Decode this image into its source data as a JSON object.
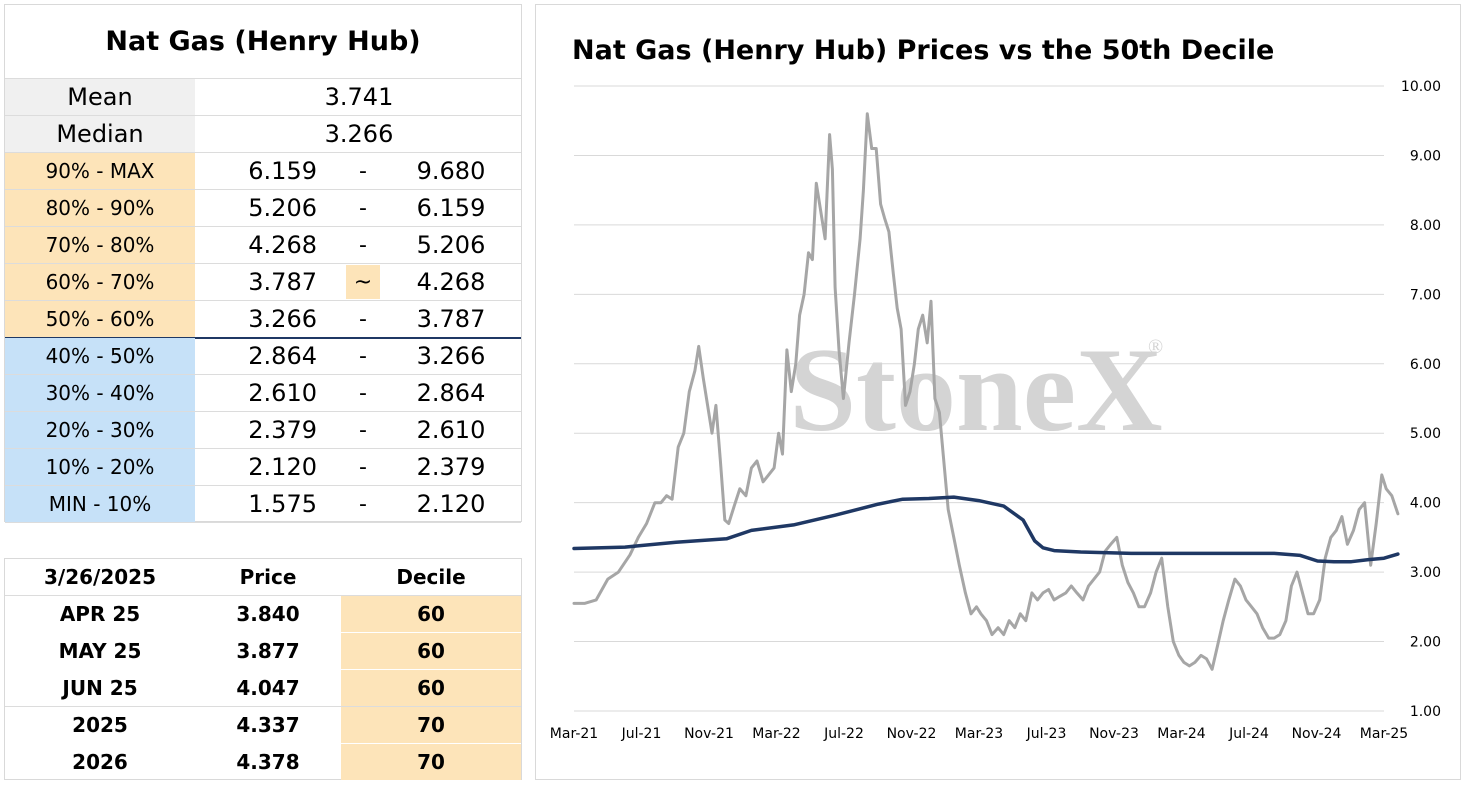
{
  "stats_table": {
    "title": "Nat Gas (Henry Hub)",
    "mean_label": "Mean",
    "mean_value": "3.741",
    "median_label": "Median",
    "median_value": "3.266",
    "deciles": [
      {
        "label": "90% - MAX",
        "low": "6.159",
        "sep": "-",
        "high": "9.680",
        "group": "upper"
      },
      {
        "label": "80% - 90%",
        "low": "5.206",
        "sep": "-",
        "high": "6.159",
        "group": "upper"
      },
      {
        "label": "70% - 80%",
        "low": "4.268",
        "sep": "-",
        "high": "5.206",
        "group": "upper"
      },
      {
        "label": "60% - 70%",
        "low": "3.787",
        "sep": "~",
        "high": "4.268",
        "group": "upper",
        "current": true
      },
      {
        "label": "50% - 60%",
        "low": "3.266",
        "sep": "-",
        "high": "3.787",
        "group": "upper"
      },
      {
        "label": "40% - 50%",
        "low": "2.864",
        "sep": "-",
        "high": "3.266",
        "group": "lower"
      },
      {
        "label": "30% - 40%",
        "low": "2.610",
        "sep": "-",
        "high": "2.864",
        "group": "lower"
      },
      {
        "label": "20% - 30%",
        "low": "2.379",
        "sep": "-",
        "high": "2.610",
        "group": "lower"
      },
      {
        "label": "10% - 20%",
        "low": "2.120",
        "sep": "-",
        "high": "2.379",
        "group": "lower"
      },
      {
        "label": "MIN - 10%",
        "low": "1.575",
        "sep": "-",
        "high": "2.120",
        "group": "lower"
      }
    ]
  },
  "futures_table": {
    "headers": [
      "3/26/2025",
      "Price",
      "Decile"
    ],
    "rows": [
      {
        "contract": "APR 25",
        "price": "3.840",
        "decile": "60"
      },
      {
        "contract": "MAY 25",
        "price": "3.877",
        "decile": "60"
      },
      {
        "contract": "JUN 25",
        "price": "4.047",
        "decile": "60"
      },
      {
        "contract": "2025",
        "price": "4.337",
        "decile": "70"
      },
      {
        "contract": "2026",
        "price": "4.378",
        "decile": "70"
      }
    ]
  },
  "colors": {
    "upper_decile": "#fde4b9",
    "lower_decile": "#c6e1f8",
    "header_grey": "#f0f0f0",
    "price_line": "#a6a6a6",
    "median_line": "#1f3864",
    "watermark": "#d4d4d4"
  },
  "watermark": "StoneX",
  "chart_data": {
    "type": "line",
    "title": "Nat Gas (Henry Hub) Prices vs the 50th Decile",
    "xlabel": "",
    "ylabel": "",
    "x_tick_labels": [
      "Mar-21",
      "Jul-21",
      "Nov-21",
      "Mar-22",
      "Jul-22",
      "Nov-22",
      "Mar-23",
      "Jul-23",
      "Nov-23",
      "Mar-24",
      "Jul-24",
      "Nov-24",
      "Mar-25"
    ],
    "y_tick_labels": [
      "1.00",
      "2.00",
      "3.00",
      "4.00",
      "5.00",
      "6.00",
      "7.00",
      "8.00",
      "9.00",
      "10.00"
    ],
    "ylim": [
      1.0,
      10.0
    ],
    "y_axis_side": "right",
    "grid": "horizontal",
    "legend": "none",
    "series": [
      {
        "style": "grey",
        "x": [
          "2021-03-01",
          "2021-03-20",
          "2021-04-10",
          "2021-05-01",
          "2021-05-20",
          "2021-06-10",
          "2021-06-25",
          "2021-07-10",
          "2021-07-25",
          "2021-08-05",
          "2021-08-15",
          "2021-08-25",
          "2021-09-05",
          "2021-09-15",
          "2021-09-25",
          "2021-10-05",
          "2021-10-12",
          "2021-10-20",
          "2021-10-28",
          "2021-11-05",
          "2021-11-12",
          "2021-11-20",
          "2021-11-28",
          "2021-12-05",
          "2021-12-15",
          "2021-12-25",
          "2022-01-05",
          "2022-01-15",
          "2022-01-25",
          "2022-02-05",
          "2022-02-15",
          "2022-02-25",
          "2022-03-05",
          "2022-03-12",
          "2022-03-20",
          "2022-03-28",
          "2022-04-05",
          "2022-04-12",
          "2022-04-20",
          "2022-04-28",
          "2022-05-05",
          "2022-05-12",
          "2022-05-20",
          "2022-05-28",
          "2022-06-05",
          "2022-06-10",
          "2022-06-15",
          "2022-06-22",
          "2022-06-30",
          "2022-07-10",
          "2022-07-20",
          "2022-07-30",
          "2022-08-05",
          "2022-08-12",
          "2022-08-20",
          "2022-08-28",
          "2022-09-05",
          "2022-09-12",
          "2022-09-20",
          "2022-09-28",
          "2022-10-05",
          "2022-10-12",
          "2022-10-20",
          "2022-10-28",
          "2022-11-05",
          "2022-11-12",
          "2022-11-20",
          "2022-11-28",
          "2022-12-05",
          "2022-12-12",
          "2022-12-20",
          "2022-12-28",
          "2023-01-05",
          "2023-01-15",
          "2023-01-25",
          "2023-02-05",
          "2023-02-15",
          "2023-02-25",
          "2023-03-05",
          "2023-03-15",
          "2023-03-25",
          "2023-04-05",
          "2023-04-15",
          "2023-04-25",
          "2023-05-05",
          "2023-05-15",
          "2023-05-25",
          "2023-06-05",
          "2023-06-15",
          "2023-06-25",
          "2023-07-05",
          "2023-07-15",
          "2023-07-25",
          "2023-08-05",
          "2023-08-15",
          "2023-08-25",
          "2023-09-05",
          "2023-09-15",
          "2023-09-25",
          "2023-10-05",
          "2023-10-15",
          "2023-10-25",
          "2023-11-05",
          "2023-11-15",
          "2023-11-25",
          "2023-12-05",
          "2023-12-15",
          "2023-12-25",
          "2024-01-05",
          "2024-01-15",
          "2024-01-25",
          "2024-02-05",
          "2024-02-15",
          "2024-02-25",
          "2024-03-05",
          "2024-03-15",
          "2024-03-25",
          "2024-04-05",
          "2024-04-15",
          "2024-04-25",
          "2024-05-05",
          "2024-05-15",
          "2024-05-25",
          "2024-06-05",
          "2024-06-15",
          "2024-06-25",
          "2024-07-05",
          "2024-07-15",
          "2024-07-25",
          "2024-08-05",
          "2024-08-15",
          "2024-08-25",
          "2024-09-05",
          "2024-09-15",
          "2024-09-25",
          "2024-10-05",
          "2024-10-15",
          "2024-10-25",
          "2024-11-05",
          "2024-11-15",
          "2024-11-25",
          "2024-12-05",
          "2024-12-15",
          "2024-12-25",
          "2025-01-05",
          "2025-01-15",
          "2025-01-25",
          "2025-02-05",
          "2025-02-15",
          "2025-02-25",
          "2025-03-05",
          "2025-03-15",
          "2025-03-26"
        ],
        "values": [
          2.55,
          2.55,
          2.6,
          2.9,
          3.0,
          3.25,
          3.5,
          3.7,
          4.0,
          4.0,
          4.1,
          4.05,
          4.8,
          5.0,
          5.6,
          5.9,
          6.25,
          5.8,
          5.4,
          5.0,
          5.4,
          4.6,
          3.75,
          3.7,
          3.95,
          4.2,
          4.1,
          4.5,
          4.6,
          4.3,
          4.4,
          4.5,
          5.0,
          4.7,
          6.2,
          5.6,
          6.0,
          6.7,
          7.0,
          7.6,
          7.5,
          8.6,
          8.2,
          7.8,
          9.3,
          8.8,
          7.1,
          6.2,
          5.5,
          6.3,
          7.0,
          7.8,
          8.5,
          9.6,
          9.1,
          9.1,
          8.3,
          8.1,
          7.9,
          7.3,
          6.8,
          6.5,
          5.4,
          5.6,
          6.0,
          6.5,
          6.7,
          6.3,
          6.9,
          5.5,
          5.3,
          4.6,
          3.9,
          3.5,
          3.1,
          2.7,
          2.4,
          2.5,
          2.4,
          2.3,
          2.1,
          2.2,
          2.1,
          2.3,
          2.2,
          2.4,
          2.3,
          2.7,
          2.6,
          2.7,
          2.75,
          2.6,
          2.65,
          2.7,
          2.8,
          2.7,
          2.6,
          2.8,
          2.9,
          3.0,
          3.3,
          3.4,
          3.5,
          3.1,
          2.85,
          2.7,
          2.5,
          2.5,
          2.7,
          3.0,
          3.2,
          2.5,
          2.0,
          1.8,
          1.7,
          1.65,
          1.7,
          1.8,
          1.75,
          1.6,
          1.95,
          2.3,
          2.6,
          2.9,
          2.8,
          2.6,
          2.5,
          2.4,
          2.2,
          2.05,
          2.05,
          2.1,
          2.3,
          2.8,
          3.0,
          2.7,
          2.4,
          2.4,
          2.6,
          3.2,
          3.5,
          3.6,
          3.8,
          3.4,
          3.6,
          3.9,
          4.0,
          3.1,
          3.7,
          4.4,
          4.2,
          4.1,
          3.84
        ]
      },
      {
        "style": "navy",
        "x": [
          "2021-03-01",
          "2021-06-01",
          "2021-09-01",
          "2021-12-01",
          "2022-01-15",
          "2022-04-01",
          "2022-06-15",
          "2022-09-01",
          "2022-10-15",
          "2022-12-01",
          "2023-01-15",
          "2023-03-01",
          "2023-04-15",
          "2023-05-20",
          "2023-06-10",
          "2023-06-25",
          "2023-07-15",
          "2023-09-01",
          "2023-12-01",
          "2024-03-01",
          "2024-06-01",
          "2024-08-15",
          "2024-10-01",
          "2024-11-01",
          "2024-12-01",
          "2025-01-01",
          "2025-02-01",
          "2025-03-01",
          "2025-03-26"
        ],
        "values": [
          3.34,
          3.36,
          3.43,
          3.48,
          3.6,
          3.68,
          3.82,
          3.98,
          4.05,
          4.06,
          4.08,
          4.03,
          3.95,
          3.75,
          3.45,
          3.35,
          3.31,
          3.29,
          3.27,
          3.27,
          3.27,
          3.27,
          3.24,
          3.16,
          3.15,
          3.15,
          3.18,
          3.2,
          3.26
        ]
      }
    ]
  }
}
